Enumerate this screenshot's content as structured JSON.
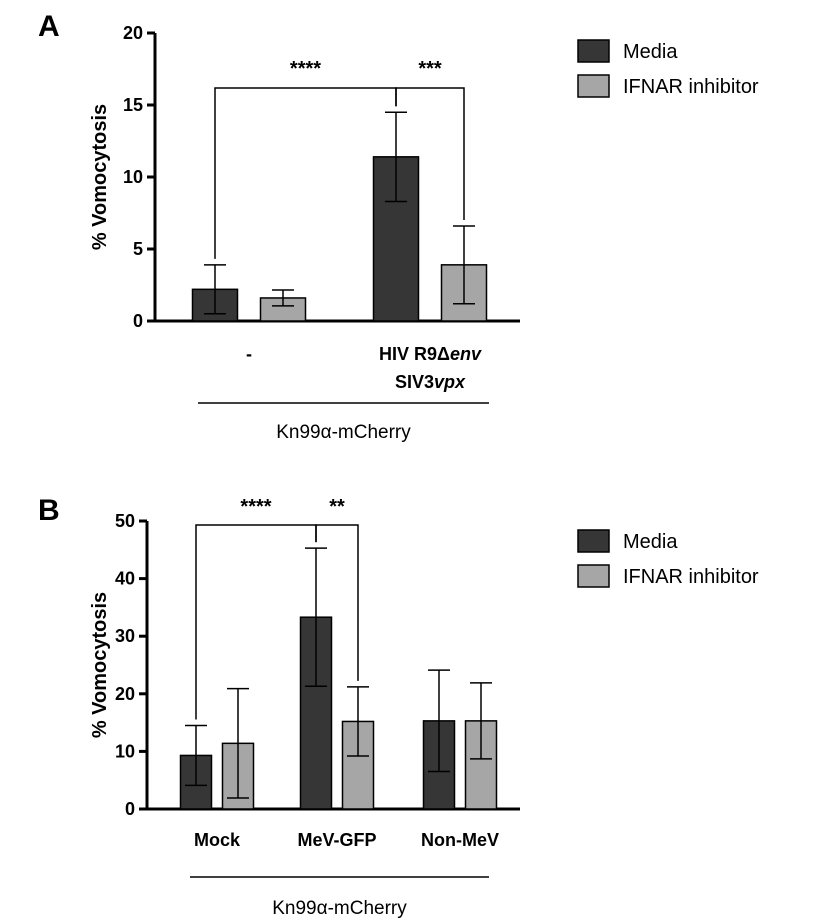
{
  "colors": {
    "media": "#363636",
    "ifnar": "#a6a6a6",
    "axis": "#000000"
  },
  "chart_data": [
    {
      "panel": "A",
      "type": "bar",
      "ylabel": "% Vomocytosis",
      "ylim": [
        0,
        20
      ],
      "yticks": [
        "0",
        "5",
        "10",
        "15",
        "20"
      ],
      "categories": [
        "-",
        "HIV R9Δenv SIV3vpx"
      ],
      "category_label_lines": [
        [
          [
            {
              "t": "-",
              "i": false
            }
          ]
        ],
        [
          [
            {
              "t": "HIV R9Δ",
              "i": false
            },
            {
              "t": "env",
              "i": true
            }
          ],
          [
            {
              "t": "SIV3",
              "i": false
            },
            {
              "t": "vpx",
              "i": true
            }
          ]
        ]
      ],
      "group_label": "Kn99α-mCherry",
      "series": [
        {
          "name": "Media",
          "values": [
            2.2,
            11.4
          ],
          "errors": [
            1.7,
            3.1
          ]
        },
        {
          "name": "IFNAR inhibitor",
          "values": [
            1.6,
            3.9
          ],
          "errors": [
            0.55,
            2.7
          ]
        }
      ],
      "significance": [
        {
          "label": "****",
          "from": [
            0,
            0
          ],
          "to": [
            1,
            0
          ]
        },
        {
          "label": "***",
          "from": [
            1,
            0
          ],
          "to": [
            1,
            1
          ]
        }
      ],
      "legend_position": "top-right"
    },
    {
      "panel": "B",
      "type": "bar",
      "ylabel": "% Vomocytosis",
      "ylim": [
        0,
        50
      ],
      "yticks": [
        "0",
        "10",
        "20",
        "30",
        "40",
        "50"
      ],
      "categories": [
        "Mock",
        "MeV-GFP",
        "Non-MeV"
      ],
      "category_label_lines": [
        [
          [
            {
              "t": "Mock",
              "i": false
            }
          ]
        ],
        [
          [
            {
              "t": "MeV-GFP",
              "i": false
            }
          ]
        ],
        [
          [
            {
              "t": "Non-MeV",
              "i": false
            }
          ]
        ]
      ],
      "group_label": "Kn99α-mCherry",
      "series": [
        {
          "name": "Media",
          "values": [
            9.3,
            33.3,
            15.3
          ],
          "errors": [
            5.2,
            12.0,
            8.8
          ]
        },
        {
          "name": "IFNAR inhibitor",
          "values": [
            11.4,
            15.2,
            15.3
          ],
          "errors": [
            9.5,
            6.0,
            6.6
          ]
        }
      ],
      "significance": [
        {
          "label": "****",
          "from": [
            0,
            0
          ],
          "to": [
            1,
            0
          ]
        },
        {
          "label": "**",
          "from": [
            1,
            0
          ],
          "to": [
            1,
            1
          ]
        }
      ],
      "legend_position": "top-right"
    }
  ]
}
